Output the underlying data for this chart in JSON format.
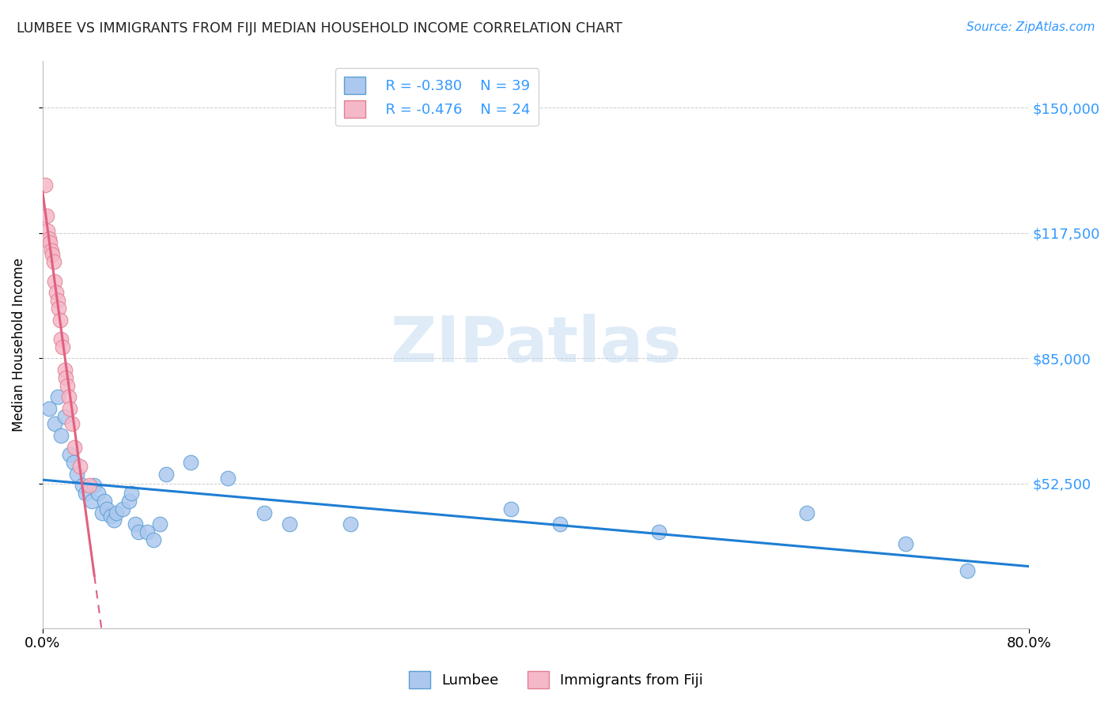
{
  "title": "LUMBEE VS IMMIGRANTS FROM FIJI MEDIAN HOUSEHOLD INCOME CORRELATION CHART",
  "source": "Source: ZipAtlas.com",
  "ylabel": "Median Household Income",
  "ytick_labels": [
    "$150,000",
    "$117,500",
    "$85,000",
    "$52,500"
  ],
  "ytick_values": [
    150000,
    117500,
    85000,
    52500
  ],
  "xlim": [
    0.0,
    0.8
  ],
  "ylim": [
    15000,
    162000
  ],
  "legend_r_lumbee": "R = -0.380",
  "legend_n_lumbee": "N = 39",
  "legend_r_fiji": "R = -0.476",
  "legend_n_fiji": "N = 24",
  "lumbee_color": "#adc8ee",
  "lumbee_edge_color": "#5a9fd4",
  "fiji_color": "#f5b8c8",
  "fiji_edge_color": "#e08090",
  "lumbee_line_color": "#1e7ed4",
  "fiji_line_color": "#e06080",
  "background_color": "#ffffff",
  "grid_color": "#cccccc",
  "lumbee_scatter_x": [
    0.005,
    0.01,
    0.012,
    0.015,
    0.018,
    0.022,
    0.025,
    0.028,
    0.032,
    0.035,
    0.04,
    0.042,
    0.045,
    0.048,
    0.05,
    0.052,
    0.055,
    0.058,
    0.06,
    0.065,
    0.07,
    0.072,
    0.075,
    0.078,
    0.085,
    0.09,
    0.095,
    0.1,
    0.12,
    0.15,
    0.18,
    0.2,
    0.25,
    0.38,
    0.42,
    0.5,
    0.62,
    0.7,
    0.75
  ],
  "lumbee_scatter_y": [
    72000,
    68000,
    75000,
    65000,
    70000,
    60000,
    58000,
    55000,
    52000,
    50000,
    48000,
    52000,
    50000,
    45000,
    48000,
    46000,
    44000,
    43000,
    45000,
    46000,
    48000,
    50000,
    42000,
    40000,
    40000,
    38000,
    42000,
    55000,
    58000,
    54000,
    45000,
    42000,
    42000,
    46000,
    42000,
    40000,
    45000,
    37000,
    30000
  ],
  "fiji_scatter_x": [
    0.002,
    0.003,
    0.004,
    0.005,
    0.006,
    0.007,
    0.008,
    0.009,
    0.01,
    0.011,
    0.012,
    0.013,
    0.014,
    0.015,
    0.016,
    0.018,
    0.019,
    0.02,
    0.021,
    0.022,
    0.024,
    0.026,
    0.03,
    0.038
  ],
  "fiji_scatter_y": [
    130000,
    122000,
    118000,
    116000,
    115000,
    113000,
    112000,
    110000,
    105000,
    102000,
    100000,
    98000,
    95000,
    90000,
    88000,
    82000,
    80000,
    78000,
    75000,
    72000,
    68000,
    62000,
    57000,
    52000
  ]
}
